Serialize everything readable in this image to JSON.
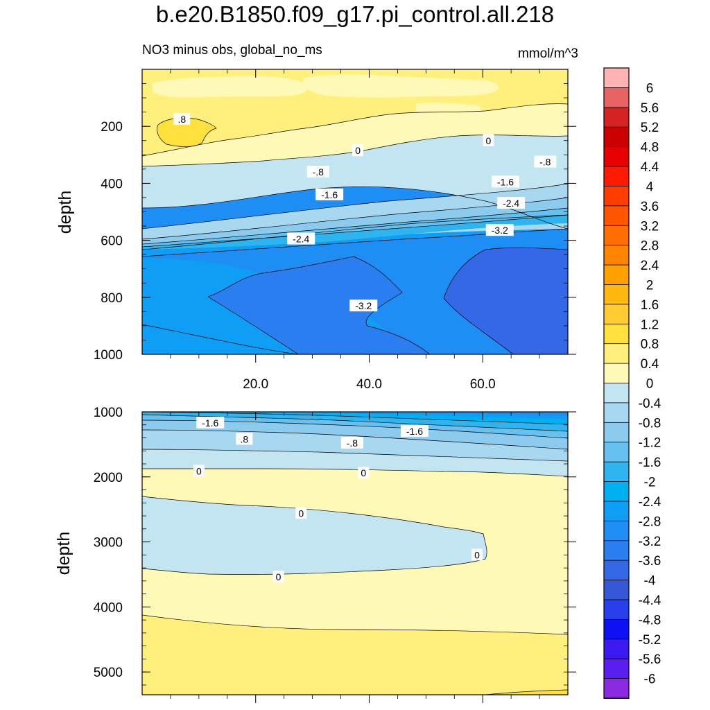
{
  "title": "b.e20.B1850.f09_g17.pi_control.all.218",
  "subtitle_left": "NO3 minus obs, global_no_ms",
  "subtitle_right": "mmol/m^3",
  "chart_data": {
    "type": "heatmap",
    "plot_kind": "depth-latitude contour plot (filled contours with labelled isolines)",
    "variable": "NO3 minus obs",
    "region": "global_no_ms",
    "units": "mmol/m^3",
    "x_axis": {
      "range": [
        0,
        75
      ],
      "tick_labels": [
        "20.0",
        "40.0",
        "60.0"
      ],
      "tick_values": [
        20,
        40,
        60
      ]
    },
    "panels": [
      {
        "id": "upper",
        "ylabel": "depth",
        "ylim": [
          1000,
          0
        ],
        "y_tick_labels": [
          "200",
          "400",
          "600",
          "800",
          "1000"
        ],
        "y_tick_values": [
          200,
          400,
          600,
          800,
          1000
        ],
        "contour_labels": [
          {
            "text": ".8",
            "x": 7,
            "y": 175
          },
          {
            "text": "0",
            "x": 38,
            "y": 285
          },
          {
            "text": "0",
            "x": 61,
            "y": 250
          },
          {
            "text": "-.8",
            "x": 31,
            "y": 360
          },
          {
            "text": "-.8",
            "x": 71,
            "y": 325
          },
          {
            "text": "-1.6",
            "x": 33,
            "y": 440
          },
          {
            "text": "-1.6",
            "x": 64,
            "y": 395
          },
          {
            "text": "-2.4",
            "x": 28,
            "y": 595
          },
          {
            "text": "-2.4",
            "x": 65,
            "y": 470
          },
          {
            "text": "-3.2",
            "x": 63,
            "y": 565
          },
          {
            "text": "-3.2",
            "x": 39,
            "y": 830
          }
        ]
      },
      {
        "id": "lower",
        "ylabel": "depth",
        "ylim": [
          5350,
          1000
        ],
        "y_tick_labels": [
          "1000",
          "2000",
          "3000",
          "4000",
          "5000"
        ],
        "y_tick_values": [
          1000,
          2000,
          3000,
          4000,
          5000
        ],
        "contour_labels": [
          {
            "text": "-1.6",
            "x": 12,
            "y": 1170
          },
          {
            "text": "-1.6",
            "x": 48,
            "y": 1300
          },
          {
            "text": ".8",
            "x": 18,
            "y": 1420
          },
          {
            "text": "-.8",
            "x": 37,
            "y": 1480
          },
          {
            "text": "0",
            "x": 10,
            "y": 1910
          },
          {
            "text": "0",
            "x": 39,
            "y": 1940
          },
          {
            "text": "0",
            "x": 28,
            "y": 2560
          },
          {
            "text": "0",
            "x": 59,
            "y": 3200
          },
          {
            "text": "0",
            "x": 24,
            "y": 3540
          }
        ]
      }
    ],
    "colorbar": {
      "labels": [
        "6",
        "5.6",
        "5.2",
        "4.8",
        "4.4",
        "4",
        "3.6",
        "3.2",
        "2.8",
        "2.4",
        "2",
        "1.6",
        "1.2",
        "0.8",
        "0.4",
        "0",
        "-0.4",
        "-0.8",
        "-1.2",
        "-1.6",
        "-2",
        "-2.4",
        "-2.8",
        "-3.2",
        "-3.6",
        "-4",
        "-4.4",
        "-4.8",
        "-5.2",
        "-5.6",
        "-6"
      ],
      "colors": [
        "#ffb3b3",
        "#e86464",
        "#d52323",
        "#cc0000",
        "#e60000",
        "#ff1a00",
        "#ff3d00",
        "#ff5500",
        "#ff6e00",
        "#ff8400",
        "#ffa000",
        "#ffb810",
        "#ffcc33",
        "#ffe03d",
        "#fff07d",
        "#fff9b8",
        "#c3e4f1",
        "#a8d8f0",
        "#8ccaee",
        "#66c0f0",
        "#2eb5f0",
        "#00b0f0",
        "#0e9ef5",
        "#1e8ef5",
        "#2a7ef0",
        "#3468e6",
        "#3658d8",
        "#2a3fec",
        "#1010f5",
        "#3a1af0",
        "#5a1ff0",
        "#8a2be2"
      ]
    }
  }
}
